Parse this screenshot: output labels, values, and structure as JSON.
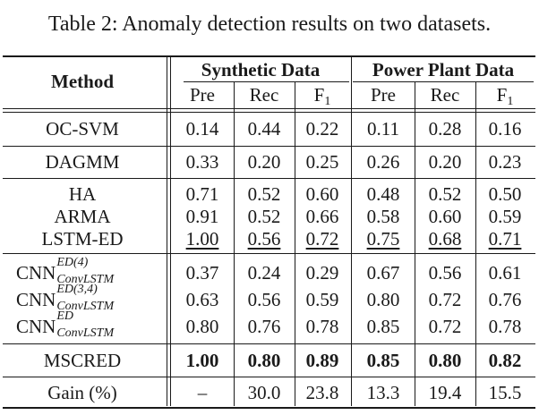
{
  "caption": "Table 2: Anomaly detection results on two datasets.",
  "header": {
    "method": "Method",
    "groups": [
      "Synthetic Data",
      "Power Plant Data"
    ],
    "metrics": [
      "Pre",
      "Rec",
      "F",
      "Pre",
      "Rec",
      "F"
    ],
    "f_subscript": "1"
  },
  "rows": [
    {
      "method": "OC-SVM",
      "values": [
        "0.14",
        "0.44",
        "0.22",
        "0.11",
        "0.28",
        "0.16"
      ]
    },
    {
      "method": "DAGMM",
      "values": [
        "0.33",
        "0.20",
        "0.25",
        "0.26",
        "0.20",
        "0.23"
      ]
    },
    {
      "method": "HA",
      "values": [
        "0.71",
        "0.52",
        "0.60",
        "0.48",
        "0.52",
        "0.50"
      ]
    },
    {
      "method": "ARMA",
      "values": [
        "0.91",
        "0.52",
        "0.66",
        "0.58",
        "0.60",
        "0.59"
      ]
    },
    {
      "method": "LSTM-ED",
      "values": [
        "1.00",
        "0.56",
        "0.72",
        "0.75",
        "0.68",
        "0.71"
      ]
    },
    {
      "method": "CNN",
      "sup": "ED(4)",
      "sub": "ConvLSTM",
      "values": [
        "0.37",
        "0.24",
        "0.29",
        "0.67",
        "0.56",
        "0.61"
      ]
    },
    {
      "method": "CNN",
      "sup": "ED(3,4)",
      "sub": "ConvLSTM",
      "values": [
        "0.63",
        "0.56",
        "0.59",
        "0.80",
        "0.72",
        "0.76"
      ]
    },
    {
      "method": "CNN",
      "sup": "ED",
      "sub": "ConvLSTM",
      "values": [
        "0.80",
        "0.76",
        "0.78",
        "0.85",
        "0.72",
        "0.78"
      ]
    },
    {
      "method": "MSCRED",
      "values": [
        "1.00",
        "0.80",
        "0.89",
        "0.85",
        "0.80",
        "0.82"
      ]
    },
    {
      "method": "Gain (%)",
      "values": [
        "–",
        "30.0",
        "23.8",
        "13.3",
        "19.4",
        "15.5"
      ]
    }
  ]
}
